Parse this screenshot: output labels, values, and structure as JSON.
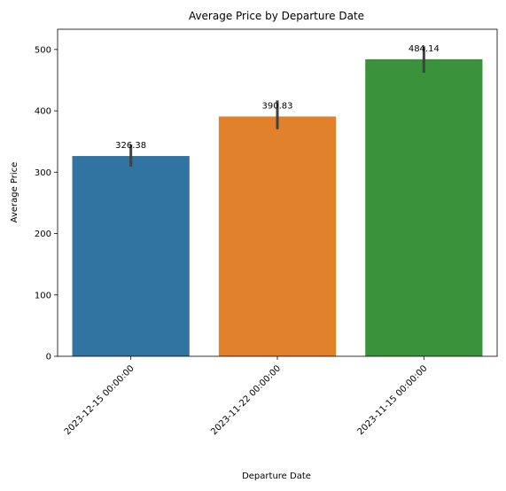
{
  "chart_data": {
    "type": "bar",
    "title": "Average Price by Departure Date",
    "xlabel": "Departure Date",
    "ylabel": "Average Price",
    "categories": [
      "2023-12-15 00:00:00",
      "2023-11-22 00:00:00",
      "2023-11-15 00:00:00"
    ],
    "values": [
      326.38,
      390.83,
      484.14
    ],
    "value_labels": [
      "326.38",
      "390.83",
      "484.14"
    ],
    "error_bars": [
      [
        309,
        345
      ],
      [
        370,
        417
      ],
      [
        462,
        505
      ]
    ],
    "colors": [
      "#3274a1",
      "#e1812c",
      "#3a923a"
    ],
    "error_color": "#424242",
    "ylim": [
      0,
      533
    ],
    "yticks": [
      0,
      100,
      200,
      300,
      400,
      500
    ],
    "ytick_labels": [
      "0",
      "100",
      "200",
      "300",
      "400",
      "500"
    ],
    "xtick_rotation_deg": 45,
    "grid": false,
    "legend": "none"
  }
}
